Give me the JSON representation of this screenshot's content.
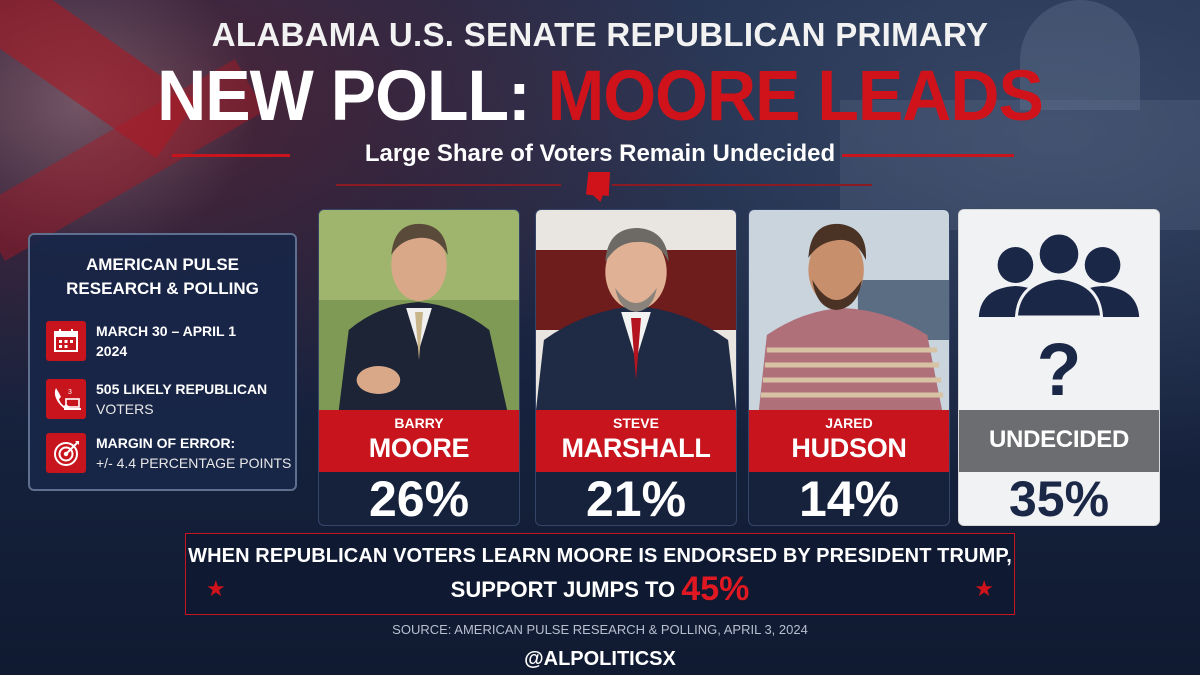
{
  "header": {
    "kicker": "ALABAMA U.S. SENATE REPUBLICAN PRIMARY",
    "headline_white": "NEW POLL: ",
    "headline_red": "MOORE LEADS",
    "subtitle": "Large Share of Voters Remain Undecided"
  },
  "info": {
    "title_line1": "AMERICAN PULSE",
    "title_line2": "RESEARCH & POLLING",
    "rows": [
      {
        "icon": "calendar-icon",
        "line1": "MARCH 30 – APRIL 1",
        "line2": "2024"
      },
      {
        "icon": "phone-laptop-icon",
        "line1": "505 LIKELY REPUBLICAN",
        "line2": "VOTERS"
      },
      {
        "icon": "target-icon",
        "line1": "MARGIN OF ERROR:",
        "line2": "+/- 4.4 PERCENTAGE POINTS"
      }
    ]
  },
  "candidates": [
    {
      "first": "BARRY",
      "last": "MOORE",
      "pct": "26%"
    },
    {
      "first": "STEVE",
      "last": "MARSHALL",
      "pct": "21%"
    },
    {
      "first": "JARED",
      "last": "HUDSON",
      "pct": "14%"
    },
    {
      "first": "",
      "last": "UNDECIDED",
      "pct": "35%"
    }
  ],
  "endorse": {
    "line1": "WHEN REPUBLICAN VOTERS LEARN MOORE IS ENDORSED BY PRESIDENT TRUMP,",
    "line2": "SUPPORT JUMPS TO ",
    "value": "45%"
  },
  "source": "SOURCE: AMERICAN PULSE RESEARCH & POLLING, APRIL 3, 2024",
  "handle": "@ALPOLITICSX",
  "colors": {
    "accent_red": "#c8141c",
    "navy": "#16213c",
    "undecided_grey": "#6c6d70"
  }
}
